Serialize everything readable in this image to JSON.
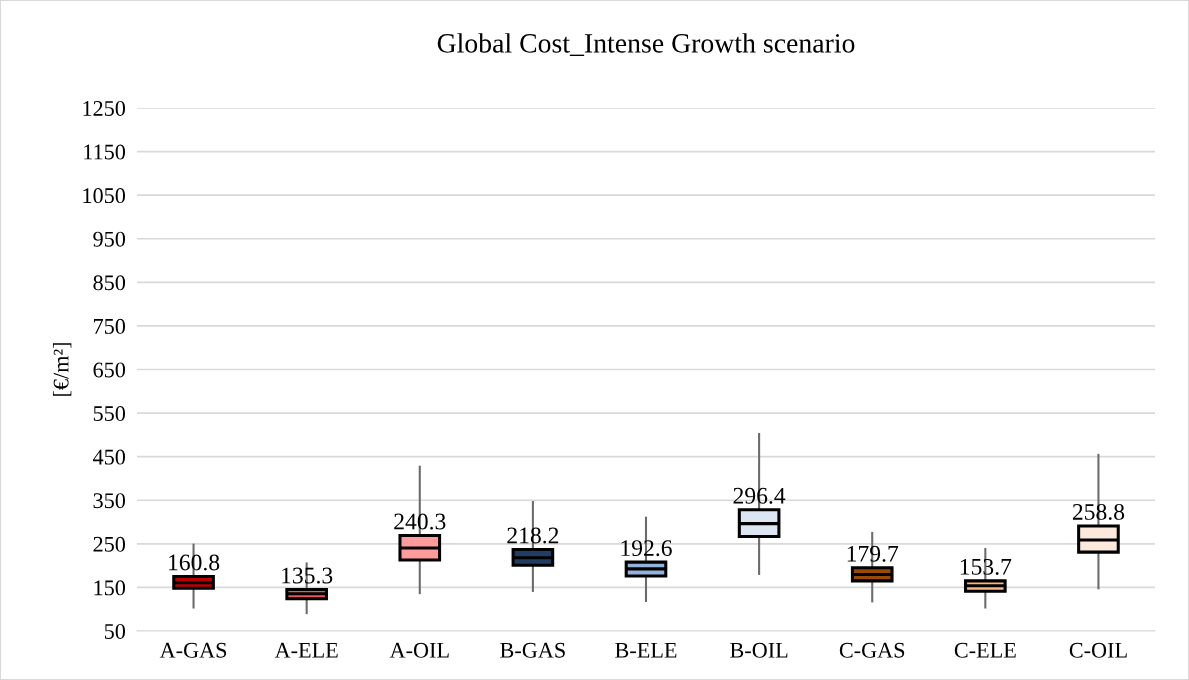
{
  "chart_data": {
    "type": "box",
    "title": "Global Cost_Intense Growth scenario",
    "ylabel": "[€/m²]",
    "categories": [
      "A-GAS",
      "A-ELE",
      "A-OIL",
      "B-GAS",
      "B-ELE",
      "B-OIL",
      "C-GAS",
      "C-ELE",
      "C-OIL"
    ],
    "colors": [
      "#c00000",
      "#e8575a",
      "#ff9b9b",
      "#213d64",
      "#94b3dc",
      "#dce6f2",
      "#984807",
      "#f9b784",
      "#fde9dc"
    ],
    "boxes": [
      {
        "low": 104,
        "q1": 148,
        "median": 160.8,
        "q3": 175,
        "high": 248
      },
      {
        "low": 91,
        "q1": 124,
        "median": 135.3,
        "q3": 145,
        "high": 205
      },
      {
        "low": 137,
        "q1": 213,
        "median": 240.3,
        "q3": 269,
        "high": 427
      },
      {
        "low": 142,
        "q1": 201,
        "median": 218.2,
        "q3": 237,
        "high": 346
      },
      {
        "low": 119,
        "q1": 176,
        "median": 192.6,
        "q3": 208,
        "high": 310
      },
      {
        "low": 181,
        "q1": 267,
        "median": 296.4,
        "q3": 328,
        "high": 502
      },
      {
        "low": 118,
        "q1": 165,
        "median": 179.7,
        "q3": 195,
        "high": 275
      },
      {
        "low": 104,
        "q1": 141,
        "median": 153.7,
        "q3": 165,
        "high": 238
      },
      {
        "low": 148,
        "q1": 231,
        "median": 258.8,
        "q3": 291,
        "high": 454
      }
    ],
    "value_labels": [
      "160.8",
      "135.3",
      "240.3",
      "218.2",
      "192.6",
      "296.4",
      "179.7",
      "153.7",
      "258.8"
    ],
    "ylim": [
      50,
      1250
    ],
    "yticks": [
      50,
      150,
      250,
      350,
      450,
      550,
      650,
      750,
      850,
      950,
      1050,
      1150,
      1250
    ],
    "grid": "y",
    "legend": false
  }
}
